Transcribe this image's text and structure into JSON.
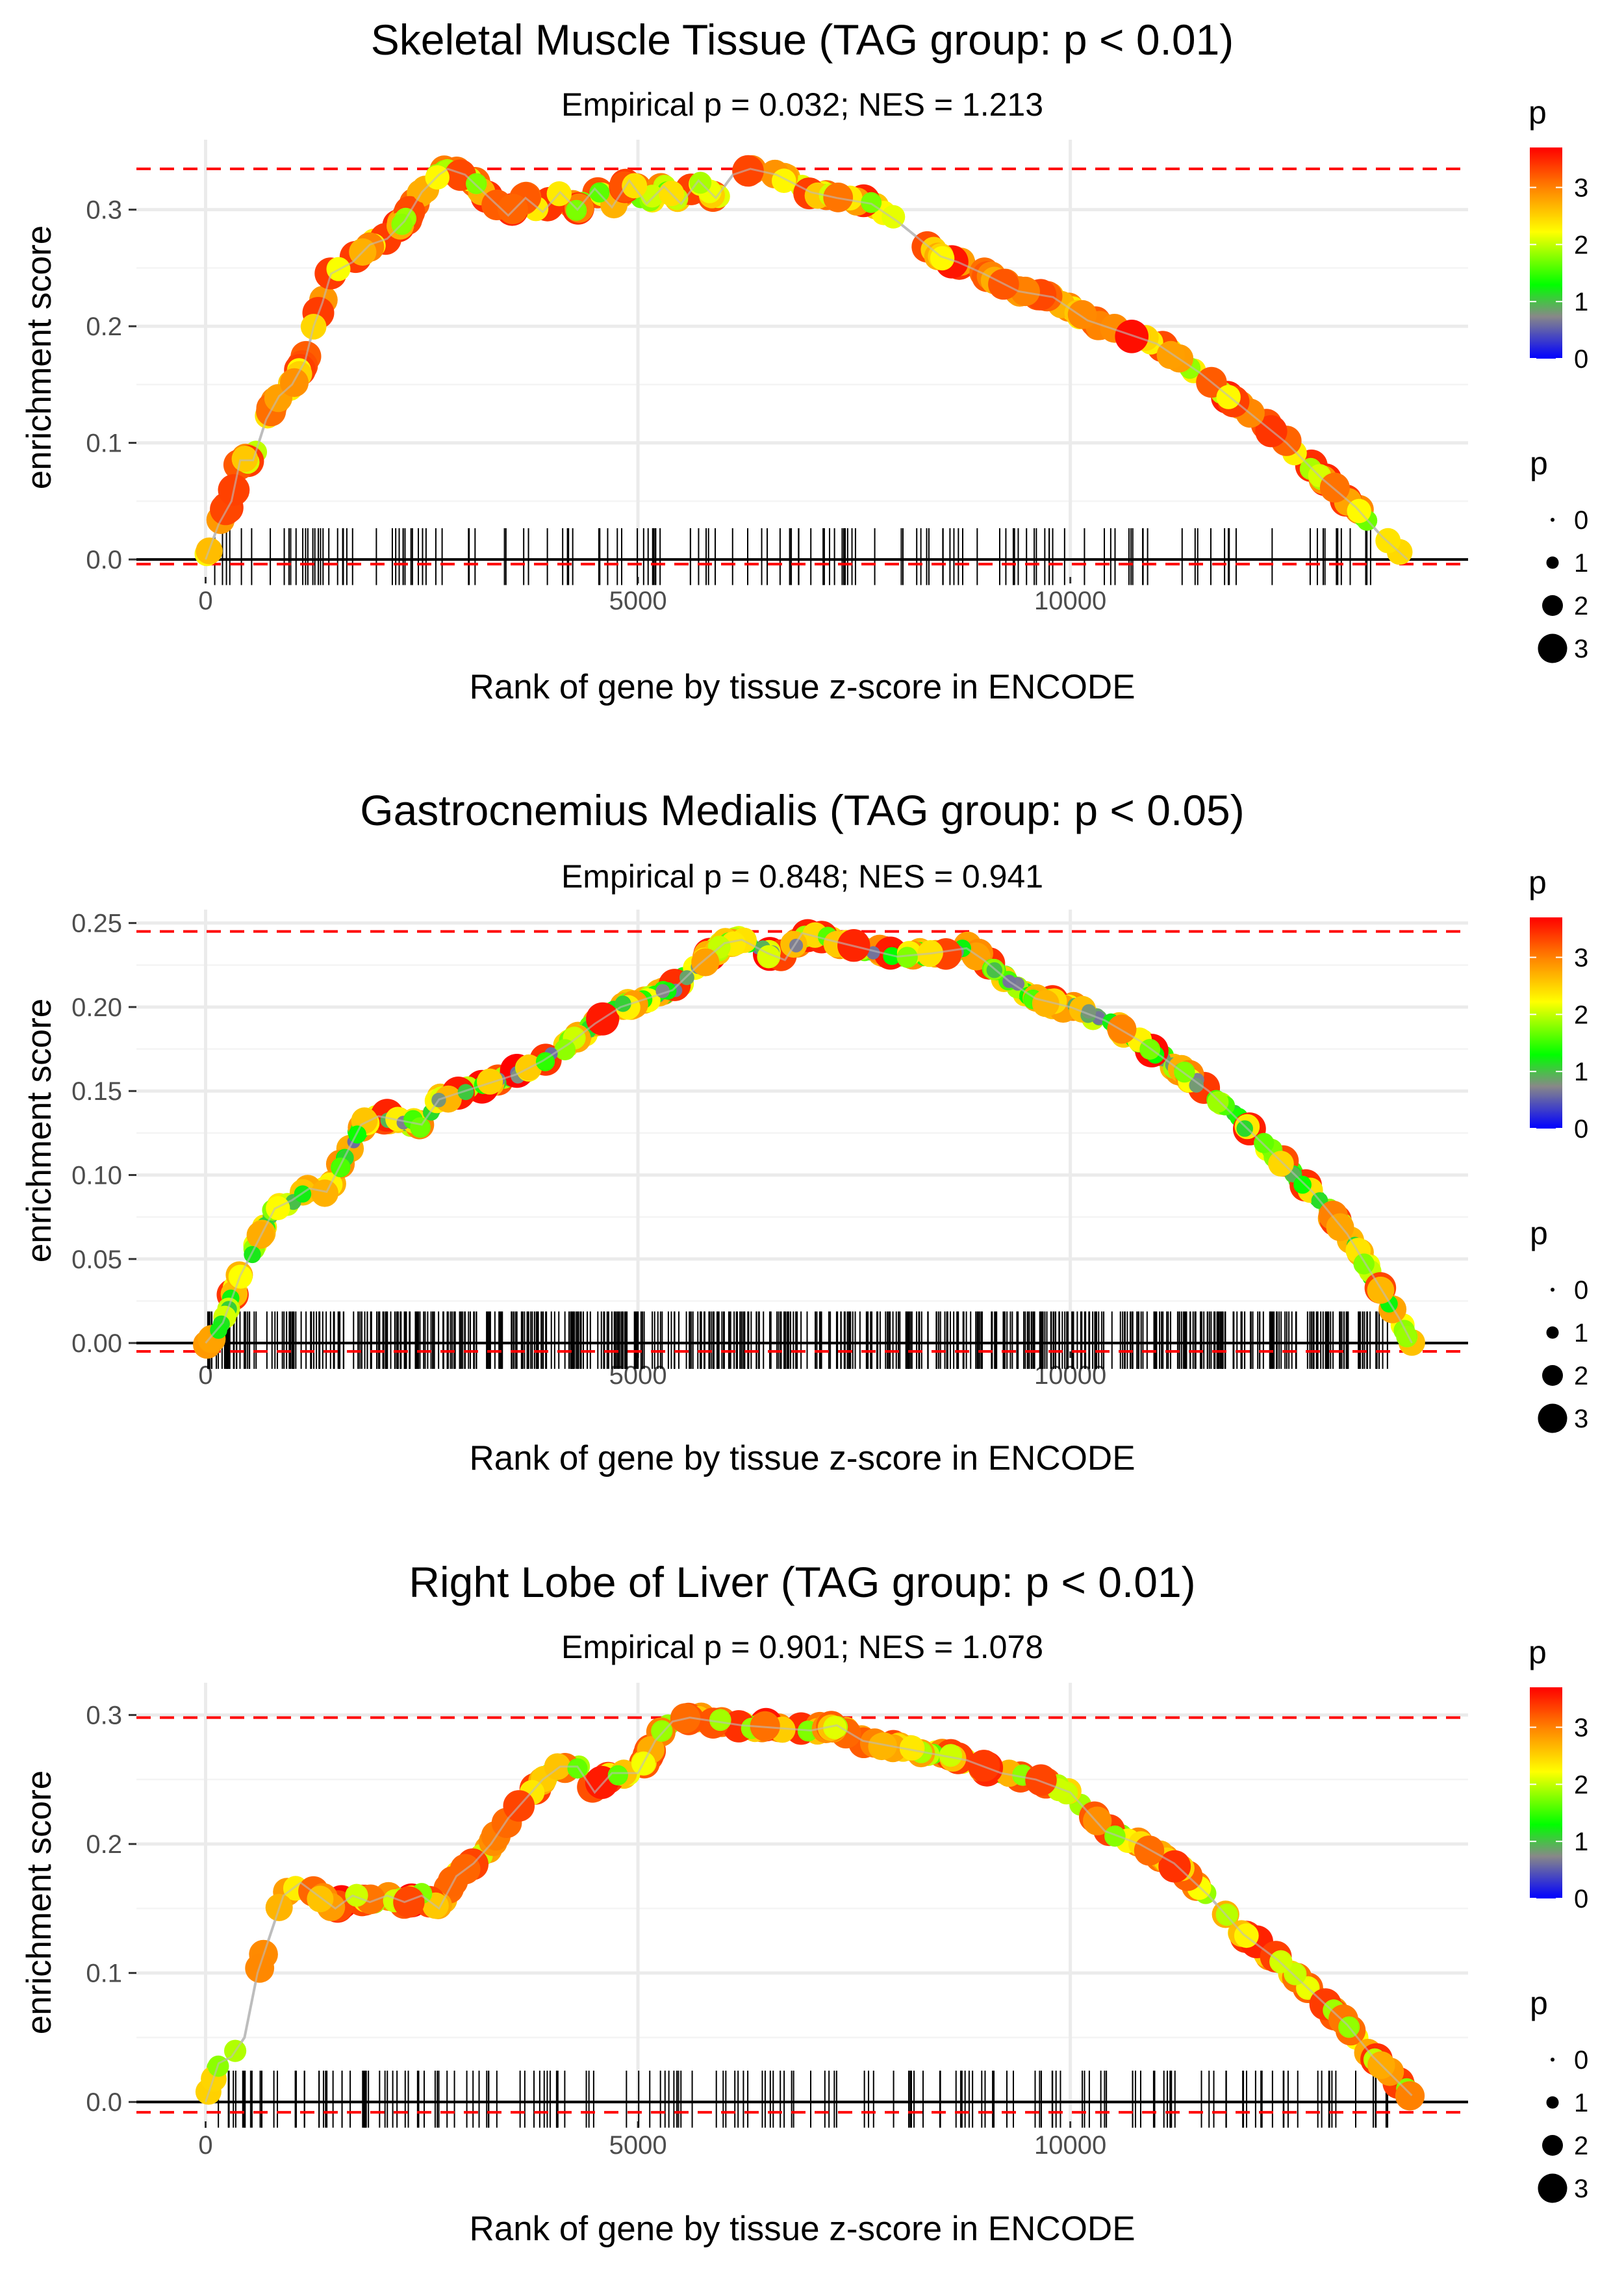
{
  "chart_data": [
    {
      "type": "scatter",
      "title": "Skeletal Muscle Tissue (TAG group: p < 0.01)",
      "subtitle": "Empirical p = 0.032; NES = 1.213",
      "xlabel": "Rank of gene by tissue z-score in ENCODE",
      "ylabel": "enrichment score",
      "xlim": [
        -800,
        14600
      ],
      "ylim": [
        -0.015,
        0.36
      ],
      "xticks": [
        0,
        5000,
        10000
      ],
      "xtick_labels": [
        "0",
        "5000",
        "10000"
      ],
      "yticks": [
        0.0,
        0.1,
        0.2,
        0.3
      ],
      "ytick_labels": [
        "0.0",
        "0.1",
        "0.2",
        "0.3"
      ],
      "max_es": 0.335,
      "min_es": -0.004,
      "n_total": 13950,
      "n_hits": 150,
      "curve": [
        [
          0,
          0.0
        ],
        [
          150,
          0.03
        ],
        [
          300,
          0.05
        ],
        [
          400,
          0.085
        ],
        [
          550,
          0.085
        ],
        [
          700,
          0.12
        ],
        [
          850,
          0.14
        ],
        [
          1000,
          0.15
        ],
        [
          1150,
          0.17
        ],
        [
          1250,
          0.2
        ],
        [
          1350,
          0.22
        ],
        [
          1450,
          0.245
        ],
        [
          1700,
          0.255
        ],
        [
          1900,
          0.27
        ],
        [
          2100,
          0.275
        ],
        [
          2300,
          0.29
        ],
        [
          2500,
          0.315
        ],
        [
          2700,
          0.33
        ],
        [
          2800,
          0.335
        ],
        [
          3000,
          0.33
        ],
        [
          3500,
          0.295
        ],
        [
          3700,
          0.31
        ],
        [
          3900,
          0.298
        ],
        [
          4100,
          0.315
        ],
        [
          4300,
          0.3
        ],
        [
          4500,
          0.318
        ],
        [
          4700,
          0.302
        ],
        [
          4900,
          0.325
        ],
        [
          5100,
          0.305
        ],
        [
          5300,
          0.32
        ],
        [
          5500,
          0.305
        ],
        [
          5700,
          0.325
        ],
        [
          5900,
          0.31
        ],
        [
          6100,
          0.33
        ],
        [
          6300,
          0.335
        ],
        [
          6600,
          0.33
        ],
        [
          7000,
          0.315
        ],
        [
          7300,
          0.31
        ],
        [
          7700,
          0.305
        ],
        [
          8000,
          0.29
        ],
        [
          8500,
          0.26
        ],
        [
          8700,
          0.255
        ],
        [
          9000,
          0.245
        ],
        [
          9400,
          0.23
        ],
        [
          9800,
          0.225
        ],
        [
          10200,
          0.205
        ],
        [
          10600,
          0.195
        ],
        [
          11000,
          0.185
        ],
        [
          11500,
          0.16
        ],
        [
          12000,
          0.13
        ],
        [
          12500,
          0.1
        ],
        [
          12900,
          0.07
        ],
        [
          13300,
          0.045
        ],
        [
          13600,
          0.02
        ],
        [
          13900,
          0.0
        ]
      ],
      "color_scale": {
        "title": "p",
        "min": 0,
        "max": 3.7,
        "ticks": [
          0,
          1,
          2,
          3
        ],
        "colors": [
          "#0000ff",
          "#888888",
          "#00ff00",
          "#ffff00",
          "#ff8800",
          "#ff0000"
        ]
      },
      "size_scale": {
        "title": "p",
        "values": [
          0,
          1,
          2,
          3
        ]
      }
    },
    {
      "type": "scatter",
      "title": "Gastrocnemius Medialis (TAG group: p < 0.05)",
      "subtitle": "Empirical p = 0.848; NES = 0.941",
      "xlabel": "Rank of gene by tissue z-score in ENCODE",
      "ylabel": "enrichment score",
      "xlim": [
        -800,
        14600
      ],
      "ylim": [
        -0.005,
        0.258
      ],
      "xticks": [
        0,
        5000,
        10000
      ],
      "xtick_labels": [
        "0",
        "5000",
        "10000"
      ],
      "yticks": [
        0.0,
        0.05,
        0.1,
        0.15,
        0.2,
        0.25
      ],
      "ytick_labels": [
        "0.00",
        "0.05",
        "0.10",
        "0.15",
        "0.20",
        "0.25"
      ],
      "max_es": 0.245,
      "min_es": -0.005,
      "n_total": 13950,
      "n_hits": 600,
      "curve": [
        [
          0,
          0.0
        ],
        [
          200,
          0.012
        ],
        [
          400,
          0.04
        ],
        [
          600,
          0.06
        ],
        [
          800,
          0.08
        ],
        [
          1000,
          0.085
        ],
        [
          1200,
          0.092
        ],
        [
          1400,
          0.09
        ],
        [
          1600,
          0.11
        ],
        [
          1800,
          0.13
        ],
        [
          2000,
          0.135
        ],
        [
          2200,
          0.133
        ],
        [
          2500,
          0.13
        ],
        [
          2700,
          0.145
        ],
        [
          3000,
          0.15
        ],
        [
          3300,
          0.155
        ],
        [
          3600,
          0.16
        ],
        [
          3900,
          0.168
        ],
        [
          4200,
          0.178
        ],
        [
          4500,
          0.19
        ],
        [
          4800,
          0.2
        ],
        [
          5100,
          0.205
        ],
        [
          5400,
          0.21
        ],
        [
          5700,
          0.225
        ],
        [
          6000,
          0.238
        ],
        [
          6200,
          0.24
        ],
        [
          6500,
          0.232
        ],
        [
          6700,
          0.228
        ],
        [
          6900,
          0.244
        ],
        [
          7200,
          0.24
        ],
        [
          7600,
          0.235
        ],
        [
          8000,
          0.23
        ],
        [
          8400,
          0.232
        ],
        [
          8800,
          0.235
        ],
        [
          9000,
          0.228
        ],
        [
          9300,
          0.215
        ],
        [
          9600,
          0.205
        ],
        [
          10000,
          0.2
        ],
        [
          10400,
          0.192
        ],
        [
          10800,
          0.18
        ],
        [
          11200,
          0.165
        ],
        [
          11600,
          0.15
        ],
        [
          12000,
          0.13
        ],
        [
          12400,
          0.11
        ],
        [
          12800,
          0.09
        ],
        [
          13200,
          0.065
        ],
        [
          13500,
          0.04
        ],
        [
          13800,
          0.015
        ],
        [
          13950,
          0.0
        ]
      ],
      "color_scale": {
        "title": "p",
        "min": 0,
        "max": 3.7,
        "ticks": [
          0,
          1,
          2,
          3
        ],
        "colors": [
          "#0000ff",
          "#888888",
          "#00ff00",
          "#ffff00",
          "#ff8800",
          "#ff0000"
        ]
      },
      "size_scale": {
        "title": "p",
        "values": [
          0,
          1,
          2,
          3
        ]
      }
    },
    {
      "type": "scatter",
      "title": "Right Lobe of Liver (TAG group: p < 0.01)",
      "subtitle": "Empirical p = 0.901; NES = 1.078",
      "xlabel": "Rank of gene by tissue z-score in ENCODE",
      "ylabel": "enrichment score",
      "xlim": [
        -800,
        14600
      ],
      "ylim": [
        -0.015,
        0.325
      ],
      "xticks": [
        0,
        5000,
        10000
      ],
      "xtick_labels": [
        "0",
        "5000",
        "10000"
      ],
      "yticks": [
        0.0,
        0.1,
        0.2,
        0.3
      ],
      "ytick_labels": [
        "0.0",
        "0.1",
        "0.2",
        "0.3"
      ],
      "max_es": 0.298,
      "min_es": -0.008,
      "n_total": 13950,
      "n_hits": 180,
      "curve": [
        [
          0,
          0.0
        ],
        [
          150,
          0.03
        ],
        [
          300,
          0.035
        ],
        [
          450,
          0.05
        ],
        [
          600,
          0.1
        ],
        [
          750,
          0.13
        ],
        [
          900,
          0.16
        ],
        [
          1000,
          0.165
        ],
        [
          1100,
          0.17
        ],
        [
          1300,
          0.16
        ],
        [
          1500,
          0.15
        ],
        [
          1700,
          0.16
        ],
        [
          1900,
          0.155
        ],
        [
          2100,
          0.16
        ],
        [
          2300,
          0.155
        ],
        [
          2500,
          0.16
        ],
        [
          2700,
          0.15
        ],
        [
          2900,
          0.175
        ],
        [
          3100,
          0.185
        ],
        [
          3300,
          0.2
        ],
        [
          3500,
          0.22
        ],
        [
          3700,
          0.235
        ],
        [
          3900,
          0.25
        ],
        [
          4100,
          0.26
        ],
        [
          4300,
          0.26
        ],
        [
          4500,
          0.24
        ],
        [
          4700,
          0.255
        ],
        [
          5000,
          0.255
        ],
        [
          5200,
          0.28
        ],
        [
          5400,
          0.295
        ],
        [
          5600,
          0.298
        ],
        [
          5900,
          0.295
        ],
        [
          6200,
          0.292
        ],
        [
          6600,
          0.29
        ],
        [
          7000,
          0.288
        ],
        [
          7300,
          0.292
        ],
        [
          7600,
          0.28
        ],
        [
          8000,
          0.275
        ],
        [
          8400,
          0.27
        ],
        [
          8800,
          0.265
        ],
        [
          9200,
          0.255
        ],
        [
          9600,
          0.25
        ],
        [
          10000,
          0.24
        ],
        [
          10400,
          0.21
        ],
        [
          10800,
          0.2
        ],
        [
          11200,
          0.185
        ],
        [
          11600,
          0.16
        ],
        [
          12000,
          0.13
        ],
        [
          12400,
          0.11
        ],
        [
          12800,
          0.085
        ],
        [
          13200,
          0.06
        ],
        [
          13500,
          0.035
        ],
        [
          13800,
          0.015
        ],
        [
          13950,
          0.005
        ]
      ],
      "color_scale": {
        "title": "p",
        "min": 0,
        "max": 3.7,
        "ticks": [
          0,
          1,
          2,
          3
        ],
        "colors": [
          "#0000ff",
          "#888888",
          "#00ff00",
          "#ffff00",
          "#ff8800",
          "#ff0000"
        ]
      },
      "size_scale": {
        "title": "p",
        "values": [
          0,
          1,
          2,
          3
        ]
      }
    }
  ]
}
